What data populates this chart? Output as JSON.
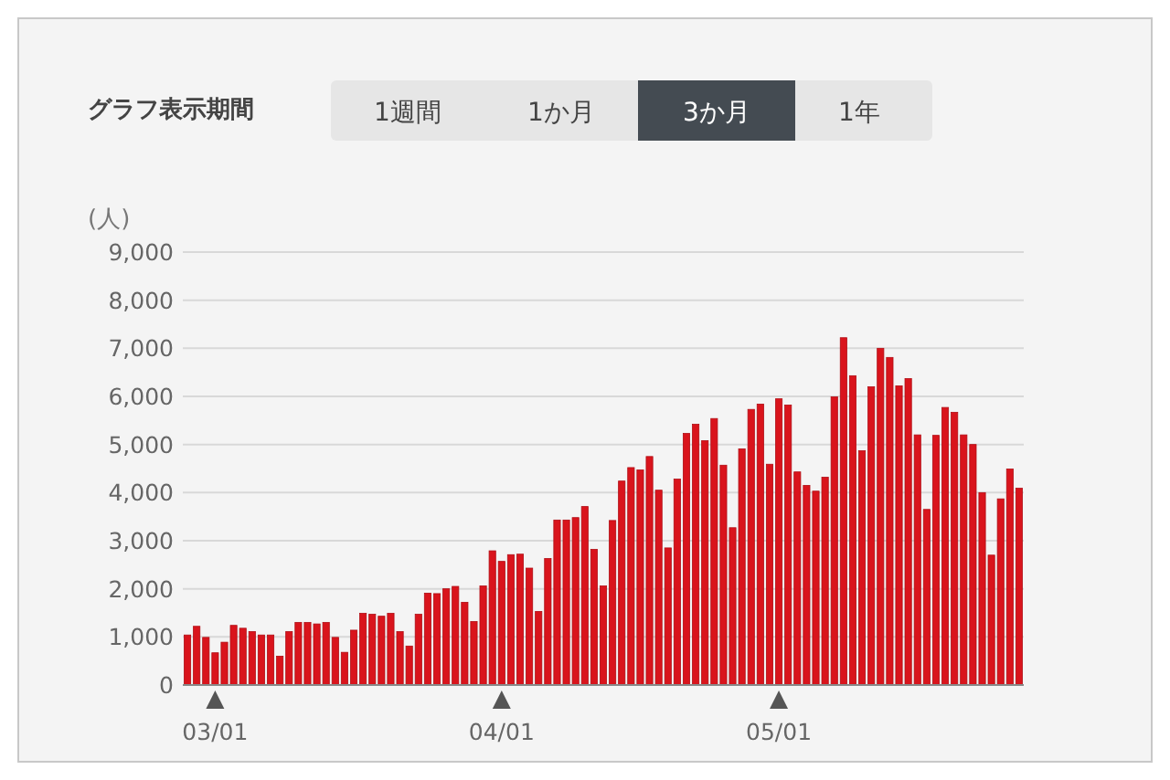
{
  "chart_data": {
    "type": "bar",
    "ylabel": "(人)",
    "annotations": [
      "グラフ表示期間",
      "1週間",
      "1か月",
      "3か月",
      "1年"
    ],
    "categories": [
      null,
      null,
      null,
      "03/01",
      null,
      null,
      null,
      null,
      null,
      null,
      null,
      null,
      null,
      null,
      null,
      null,
      null,
      null,
      null,
      null,
      null,
      null,
      null,
      null,
      null,
      null,
      null,
      null,
      null,
      null,
      null,
      null,
      null,
      null,
      "04/01",
      null,
      null,
      null,
      null,
      null,
      null,
      null,
      null,
      null,
      null,
      null,
      null,
      null,
      null,
      null,
      null,
      null,
      null,
      null,
      null,
      null,
      null,
      null,
      null,
      null,
      null,
      null,
      null,
      null,
      "05/01",
      null,
      null,
      null,
      null,
      null,
      null,
      null,
      null,
      null,
      null,
      null,
      null,
      null,
      null,
      null,
      null,
      null,
      null,
      null,
      null,
      null,
      null,
      null,
      null,
      null,
      null
    ],
    "values": [
      1040,
      1220,
      990,
      670,
      890,
      1240,
      1180,
      1110,
      1040,
      1040,
      600,
      1110,
      1300,
      1300,
      1270,
      1300,
      990,
      680,
      1140,
      1490,
      1470,
      1430,
      1490,
      1110,
      810,
      1470,
      1910,
      1900,
      2000,
      2050,
      1720,
      1320,
      2060,
      2790,
      2570,
      2710,
      2720,
      2430,
      1530,
      2630,
      3430,
      3430,
      3480,
      3710,
      2820,
      2060,
      3420,
      4240,
      4520,
      4470,
      4750,
      4050,
      2850,
      4280,
      5230,
      5420,
      5080,
      5540,
      4570,
      3270,
      4910,
      5730,
      5840,
      4590,
      5950,
      5820,
      4430,
      4150,
      4030,
      4320,
      5990,
      7220,
      6430,
      4870,
      6200,
      7000,
      6810,
      6220,
      6370,
      5200,
      3650,
      5190,
      5770,
      5670,
      5200,
      5000,
      4000,
      2700,
      3870,
      4490,
      4090
    ],
    "color": "#d9141c",
    "ylim": [
      0,
      9000
    ],
    "yticks": [
      {
        "value": 0,
        "label": "0"
      },
      {
        "value": 1000,
        "label": "1,000"
      },
      {
        "value": 2000,
        "label": "2,000"
      },
      {
        "value": 3000,
        "label": "3,000"
      },
      {
        "value": 4000,
        "label": "4,000"
      },
      {
        "value": 5000,
        "label": "5,000"
      },
      {
        "value": 6000,
        "label": "6,000"
      },
      {
        "value": 7000,
        "label": "7,000"
      },
      {
        "value": 8000,
        "label": "8,000"
      },
      {
        "value": 9000,
        "label": "9,000"
      }
    ],
    "grid": "y"
  }
}
